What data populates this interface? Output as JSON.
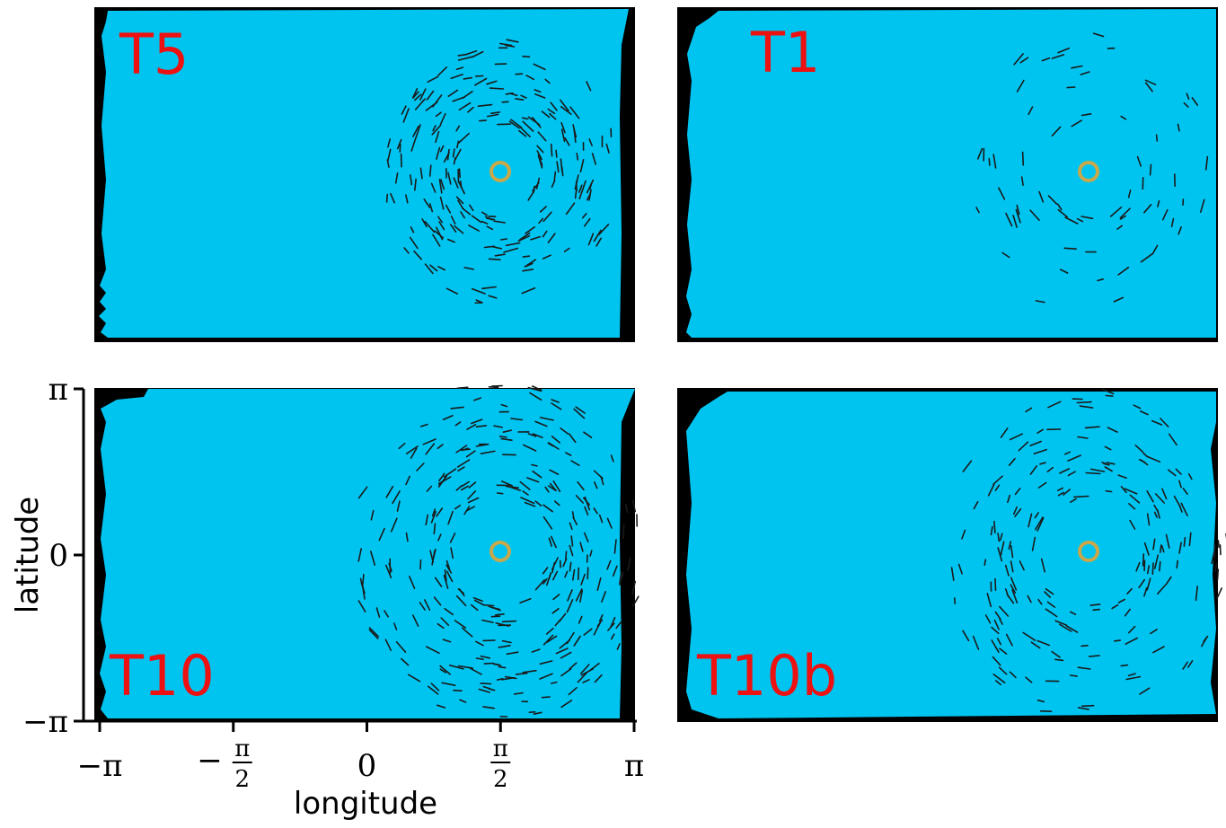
{
  "chart_data": {
    "type": "scatter",
    "description_note": "",
    "colors": {
      "background": "#00c4f0",
      "border": "#000000",
      "marker_ring": "#c8a84a",
      "panel_label": "#ee1111",
      "streak": "#1a1a1a"
    },
    "axes": {
      "xlabel": "longitude",
      "ylabel": "latitude",
      "xlim": [
        -3.1416,
        3.1416
      ],
      "ylim": [
        -3.1416,
        3.1416
      ],
      "x_ticks": [
        {
          "value": -3.1416,
          "label": "−π"
        },
        {
          "value": -1.5708,
          "label_prefix": "−",
          "num": "π",
          "den": "2"
        },
        {
          "value": 0,
          "label": "0"
        },
        {
          "value": 1.5708,
          "num": "π",
          "den": "2"
        },
        {
          "value": 3.1416,
          "label": "π"
        }
      ],
      "y_ticks": [
        {
          "value": 3.1416,
          "label": "π"
        },
        {
          "value": 0,
          "label": "0"
        },
        {
          "value": -3.1416,
          "label": "−π"
        }
      ]
    },
    "panels": [
      {
        "label": "T5",
        "marker": {
          "x": 1.5708,
          "y": 0
        }
      },
      {
        "label": "T1",
        "marker": {
          "x": 1.5708,
          "y": 0
        }
      },
      {
        "label": "T10",
        "marker": {
          "x": 1.5708,
          "y": 0
        }
      },
      {
        "label": "T10b",
        "marker": {
          "x": 1.5708,
          "y": 0
        }
      }
    ]
  }
}
